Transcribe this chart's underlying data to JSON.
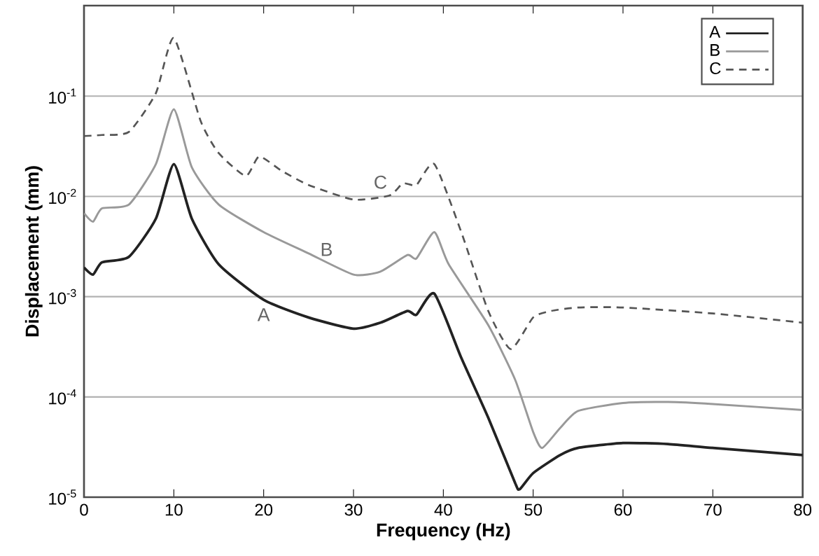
{
  "chart_data": {
    "type": "line",
    "xlabel": "Frequency (Hz)",
    "ylabel": "Displacement (mm)",
    "log": "y",
    "grid": "y",
    "legend": "top right",
    "xlim": [
      0,
      80
    ],
    "xticks": [
      0,
      10,
      20,
      30,
      40,
      50,
      60,
      70,
      80
    ],
    "ylim": [
      1e-05,
      0.8
    ],
    "yticks": [
      {
        "value": 1e-05,
        "label": "10$^{-5}$"
      },
      {
        "value": 0.0001,
        "label": "10$^{-4}$"
      },
      {
        "value": 0.001,
        "label": "10$^{-3}$"
      },
      {
        "value": 0.01,
        "label": "10$^{-2}$"
      },
      {
        "value": 0.1,
        "label": "10$^{-1}$"
      }
    ],
    "series": [
      {
        "name": "A",
        "color": "#222222",
        "line_style": "solid",
        "x": [
          0,
          1,
          2,
          5,
          8,
          10,
          12,
          15,
          20,
          25,
          30,
          33,
          36,
          37,
          39,
          42,
          45,
          48,
          48.5,
          50,
          53,
          55,
          60,
          65,
          70,
          80
        ],
        "values": [
          0.00195,
          0.00166,
          0.0022,
          0.0025,
          0.006,
          0.021,
          0.006,
          0.0021,
          0.00093,
          0.00062,
          0.00048,
          0.00055,
          0.00072,
          0.00066,
          0.00107,
          0.000245,
          6.2e-05,
          1.38e-05,
          1.2e-05,
          1.74e-05,
          2.63e-05,
          3.1e-05,
          3.47e-05,
          3.39e-05,
          3.1e-05,
          2.63e-05
        ]
      },
      {
        "name": "B",
        "color": "#999999",
        "line_style": "solid",
        "x": [
          0,
          1,
          2,
          5,
          8,
          10,
          12,
          15,
          20,
          25,
          30,
          33,
          36,
          37,
          39,
          40.6,
          45,
          48,
          50,
          51,
          53,
          55,
          60,
          65,
          70,
          80
        ],
        "values": [
          0.0068,
          0.0056,
          0.0076,
          0.0083,
          0.021,
          0.074,
          0.0195,
          0.0083,
          0.0044,
          0.0027,
          0.00166,
          0.00178,
          0.0026,
          0.0024,
          0.0044,
          0.0021,
          0.00052,
          0.000148,
          4.47e-05,
          3.1e-05,
          4.9e-05,
          7.24e-05,
          8.7e-05,
          8.9e-05,
          8.5e-05,
          7.4e-05
        ]
      },
      {
        "name": "C",
        "color": "#555555",
        "line_style": "dashed",
        "x": [
          0,
          2,
          5,
          8,
          10,
          13,
          15,
          18,
          19.5,
          22,
          25,
          30,
          34,
          35.5,
          37,
          39,
          42,
          45,
          47.5,
          50,
          52,
          55,
          60,
          70,
          80
        ],
        "values": [
          0.04,
          0.041,
          0.044,
          0.107,
          0.38,
          0.056,
          0.027,
          0.016,
          0.025,
          0.018,
          0.013,
          0.0093,
          0.0102,
          0.0135,
          0.013,
          0.021,
          0.0044,
          0.00072,
          0.0003,
          0.00062,
          0.00072,
          0.00078,
          0.00078,
          0.00068,
          0.00055
        ]
      }
    ],
    "annotations": [
      {
        "text": "A",
        "x": 20,
        "y": 0.00093
      },
      {
        "text": "B",
        "x": 27,
        "y": 0.0021
      },
      {
        "text": "C",
        "x": 33,
        "y": 0.0098
      }
    ]
  }
}
